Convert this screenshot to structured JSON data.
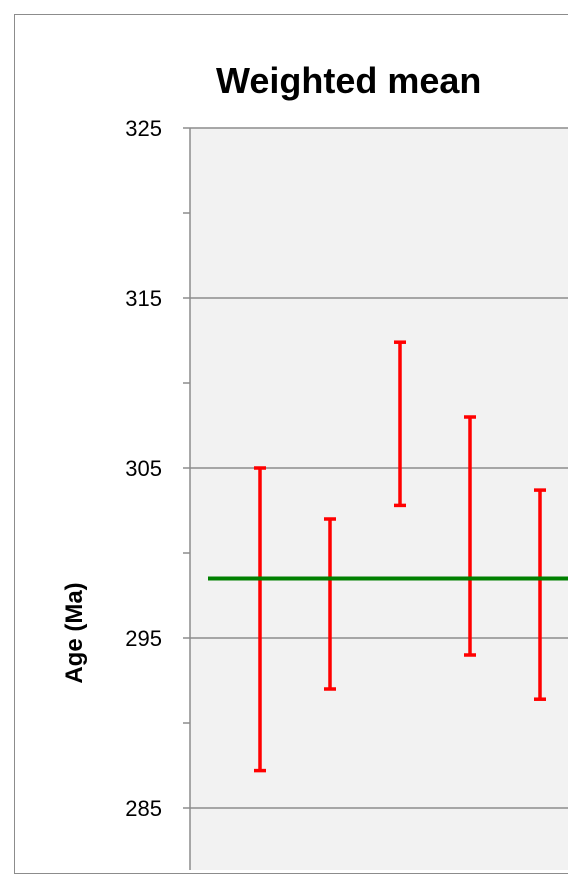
{
  "chart_data": {
    "type": "scatter",
    "title": "Weighted mean",
    "ylabel": "Age (Ma)",
    "xlabel": "",
    "ylim": [
      283,
      325
    ],
    "yticks": [
      325,
      315,
      305,
      295,
      285
    ],
    "minor_tick_step": 5,
    "grid": "horizontal major",
    "weighted_mean": 298.5,
    "colors": {
      "plot_background": "#f2f2f2",
      "gridline": "#8c8c8c",
      "error_bar": "#ff0000",
      "mean_line": "#008000"
    },
    "series": [
      {
        "data": [
          {
            "x": 1,
            "low": 287.2,
            "high": 305.0
          },
          {
            "x": 2,
            "low": 292.0,
            "high": 302.0
          },
          {
            "x": 3,
            "low": 302.8,
            "high": 312.4
          },
          {
            "x": 4,
            "low": 294.0,
            "high": 308.0
          },
          {
            "x": 5,
            "low": 291.4,
            "high": 303.7
          }
        ]
      }
    ]
  }
}
